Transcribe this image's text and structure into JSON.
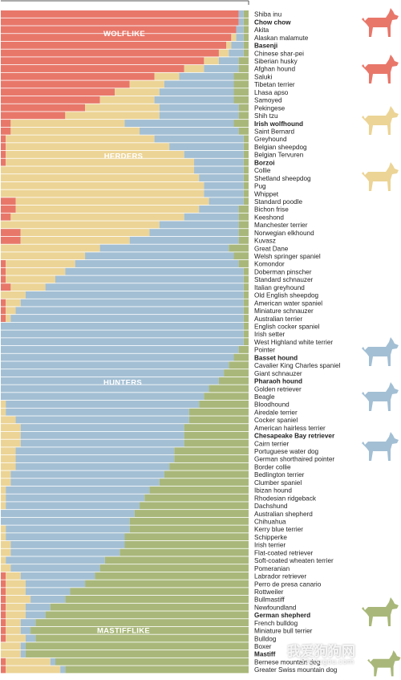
{
  "colors": {
    "wolflike": "#e8776a",
    "herders": "#ecd496",
    "hunters": "#a3bfd4",
    "mastifflike": "#a9b87a",
    "label_text": "#222222"
  },
  "chart_data": {
    "type": "bar",
    "orientation": "horizontal-stacked",
    "groups": [
      {
        "name": "WOLFLIKE",
        "color": "#e8776a"
      },
      {
        "name": "HERDERS",
        "color": "#ecd496"
      },
      {
        "name": "HUNTERS",
        "color": "#a3bfd4"
      },
      {
        "name": "MASTIFFLIKE",
        "color": "#a9b87a"
      }
    ],
    "xlim": [
      0,
      100
    ],
    "breeds": [
      {
        "name": "Shiba inu",
        "highlight": ""
      },
      {
        "name": "Chow chow",
        "highlight": "#d9534f"
      },
      {
        "name": "Akita",
        "highlight": ""
      },
      {
        "name": "Alaskan malamute",
        "highlight": ""
      },
      {
        "name": "Basenji",
        "highlight": "#d9534f"
      },
      {
        "name": "Chinese shar-pei",
        "highlight": ""
      },
      {
        "name": "Siberian husky",
        "highlight": ""
      },
      {
        "name": "Afghan hound",
        "highlight": ""
      },
      {
        "name": "Saluki",
        "highlight": ""
      },
      {
        "name": "Tibetan terrier",
        "highlight": ""
      },
      {
        "name": "Lhasa apso",
        "highlight": ""
      },
      {
        "name": "Samoyed",
        "highlight": ""
      },
      {
        "name": "Pekingese",
        "highlight": ""
      },
      {
        "name": "Shih tzu",
        "highlight": ""
      },
      {
        "name": "Irish wolfhound",
        "highlight": "#8a9a4a"
      },
      {
        "name": "Saint Bernard",
        "highlight": ""
      },
      {
        "name": "Greyhound",
        "highlight": ""
      },
      {
        "name": "Belgian sheepdog",
        "highlight": ""
      },
      {
        "name": "Belgian Tervuren",
        "highlight": ""
      },
      {
        "name": "Borzoi",
        "highlight": "#c9a74a"
      },
      {
        "name": "Collie",
        "highlight": ""
      },
      {
        "name": "Shetland sheepdog",
        "highlight": ""
      },
      {
        "name": "Pug",
        "highlight": ""
      },
      {
        "name": "Whippet",
        "highlight": ""
      },
      {
        "name": "Standard poodle",
        "highlight": ""
      },
      {
        "name": "Bichon frise",
        "highlight": ""
      },
      {
        "name": "Keeshond",
        "highlight": ""
      },
      {
        "name": "Manchester terrier",
        "highlight": ""
      },
      {
        "name": "Norwegian elkhound",
        "highlight": ""
      },
      {
        "name": "Kuvasz",
        "highlight": ""
      },
      {
        "name": "Great Dane",
        "highlight": ""
      },
      {
        "name": "Welsh springer spaniel",
        "highlight": ""
      },
      {
        "name": "Komondor",
        "highlight": ""
      },
      {
        "name": "Doberman pinscher",
        "highlight": ""
      },
      {
        "name": "Standard schnauzer",
        "highlight": ""
      },
      {
        "name": "Italian greyhound",
        "highlight": ""
      },
      {
        "name": "Old English sheepdog",
        "highlight": ""
      },
      {
        "name": "American water spaniel",
        "highlight": ""
      },
      {
        "name": "Miniature schnauzer",
        "highlight": ""
      },
      {
        "name": "Australian terrier",
        "highlight": ""
      },
      {
        "name": "English cocker spaniel",
        "highlight": ""
      },
      {
        "name": "Irish setter",
        "highlight": ""
      },
      {
        "name": "West Highland white terrier",
        "highlight": ""
      },
      {
        "name": "Pointer",
        "highlight": ""
      },
      {
        "name": "Basset hound",
        "highlight": "#4a7fa8"
      },
      {
        "name": "Cavalier King Charles spaniel",
        "highlight": ""
      },
      {
        "name": "Giant schnauzer",
        "highlight": ""
      },
      {
        "name": "Pharaoh hound",
        "highlight": "#4a7fa8"
      },
      {
        "name": "Golden retriever",
        "highlight": ""
      },
      {
        "name": "Beagle",
        "highlight": ""
      },
      {
        "name": "Bloodhound",
        "highlight": ""
      },
      {
        "name": "Airedale terrier",
        "highlight": ""
      },
      {
        "name": "Cocker spaniel",
        "highlight": ""
      },
      {
        "name": "American hairless terrier",
        "highlight": ""
      },
      {
        "name": "Chesapeake Bay retriever",
        "highlight": "#4a7fa8"
      },
      {
        "name": "Cairn terrier",
        "highlight": ""
      },
      {
        "name": "Portuguese water dog",
        "highlight": ""
      },
      {
        "name": "German shorthaired pointer",
        "highlight": ""
      },
      {
        "name": "Border collie",
        "highlight": ""
      },
      {
        "name": "Bedlington terrier",
        "highlight": ""
      },
      {
        "name": "Clumber spaniel",
        "highlight": ""
      },
      {
        "name": "Ibizan hound",
        "highlight": ""
      },
      {
        "name": "Rhodesian ridgeback",
        "highlight": ""
      },
      {
        "name": "Dachshund",
        "highlight": ""
      },
      {
        "name": "Australian shepherd",
        "highlight": ""
      },
      {
        "name": "Chihuahua",
        "highlight": ""
      },
      {
        "name": "Kerry blue terrier",
        "highlight": ""
      },
      {
        "name": "Schipperke",
        "highlight": ""
      },
      {
        "name": "Irish terrier",
        "highlight": ""
      },
      {
        "name": "Flat-coated retriever",
        "highlight": ""
      },
      {
        "name": "Soft-coated wheaten terrier",
        "highlight": ""
      },
      {
        "name": "Pomeranian",
        "highlight": ""
      },
      {
        "name": "Labrador retriever",
        "highlight": ""
      },
      {
        "name": "Perro de presa canario",
        "highlight": ""
      },
      {
        "name": "Rottweiler",
        "highlight": ""
      },
      {
        "name": "Bullmastiff",
        "highlight": ""
      },
      {
        "name": "Newfoundland",
        "highlight": ""
      },
      {
        "name": "German shepherd",
        "highlight": "#8a9a4a"
      },
      {
        "name": "French bulldog",
        "highlight": ""
      },
      {
        "name": "Miniature bull terrier",
        "highlight": ""
      },
      {
        "name": "Bulldog",
        "highlight": ""
      },
      {
        "name": "Boxer",
        "highlight": ""
      },
      {
        "name": "Mastiff",
        "highlight": "#8a9a4a"
      },
      {
        "name": "Bernese mountain dog",
        "highlight": ""
      },
      {
        "name": "Greater Swiss mountain dog",
        "highlight": ""
      }
    ],
    "wolflike_pct": [
      96,
      96,
      95,
      93,
      91,
      88,
      82,
      74,
      62,
      52,
      46,
      40,
      34,
      26,
      4,
      4,
      2,
      2,
      2,
      2,
      0,
      0,
      0,
      0,
      6,
      6,
      4,
      0,
      8,
      8,
      0,
      0,
      2,
      2,
      2,
      4,
      0,
      2,
      2,
      2,
      0,
      0,
      0,
      0,
      0,
      0,
      0,
      0,
      0,
      0,
      0,
      0,
      0,
      0,
      0,
      0,
      0,
      0,
      0,
      0,
      0,
      0,
      0,
      0,
      0,
      0,
      0,
      0,
      0,
      0,
      0,
      0,
      2,
      2,
      2,
      2,
      2,
      2,
      2,
      2,
      2,
      0,
      0,
      2,
      2
    ],
    "herders_pct": [
      0,
      0,
      0,
      2,
      2,
      4,
      6,
      8,
      10,
      14,
      18,
      22,
      30,
      38,
      46,
      52,
      60,
      66,
      72,
      76,
      78,
      80,
      82,
      82,
      78,
      74,
      70,
      64,
      52,
      44,
      40,
      34,
      28,
      24,
      20,
      14,
      10,
      6,
      4,
      2,
      0,
      0,
      0,
      0,
      0,
      0,
      0,
      0,
      0,
      0,
      2,
      2,
      6,
      8,
      8,
      8,
      6,
      6,
      6,
      4,
      4,
      2,
      2,
      2,
      0,
      0,
      2,
      2,
      4,
      4,
      2,
      4,
      6,
      8,
      8,
      10,
      8,
      8,
      6,
      6,
      8,
      8,
      8,
      18,
      22
    ],
    "hunters_pct": [
      2,
      2,
      3,
      3,
      5,
      6,
      8,
      14,
      22,
      28,
      30,
      32,
      32,
      32,
      44,
      40,
      36,
      30,
      24,
      20,
      20,
      18,
      16,
      16,
      14,
      16,
      22,
      32,
      36,
      44,
      52,
      60,
      66,
      72,
      76,
      80,
      88,
      90,
      92,
      94,
      98,
      98,
      98,
      96,
      94,
      92,
      90,
      88,
      84,
      82,
      78,
      74,
      70,
      66,
      66,
      66,
      64,
      64,
      62,
      62,
      60,
      58,
      56,
      54,
      54,
      52,
      50,
      48,
      46,
      44,
      40,
      36,
      30,
      24,
      18,
      14,
      10,
      8,
      6,
      4,
      4,
      2,
      2,
      2,
      2
    ],
    "mastifflike_pct": [
      2,
      2,
      2,
      2,
      2,
      2,
      4,
      4,
      6,
      6,
      6,
      6,
      4,
      4,
      6,
      4,
      2,
      2,
      2,
      2,
      2,
      2,
      2,
      2,
      2,
      4,
      4,
      4,
      4,
      4,
      8,
      6,
      4,
      2,
      2,
      2,
      2,
      2,
      2,
      2,
      2,
      2,
      2,
      4,
      6,
      8,
      10,
      12,
      16,
      18,
      20,
      24,
      24,
      26,
      26,
      26,
      30,
      30,
      32,
      34,
      36,
      40,
      42,
      44,
      46,
      48,
      48,
      50,
      50,
      52,
      58,
      60,
      62,
      66,
      72,
      74,
      80,
      82,
      86,
      88,
      86,
      90,
      90,
      78,
      74
    ]
  },
  "watermark": {
    "title": "我爱狗狗网",
    "url": "52gougou.com"
  }
}
